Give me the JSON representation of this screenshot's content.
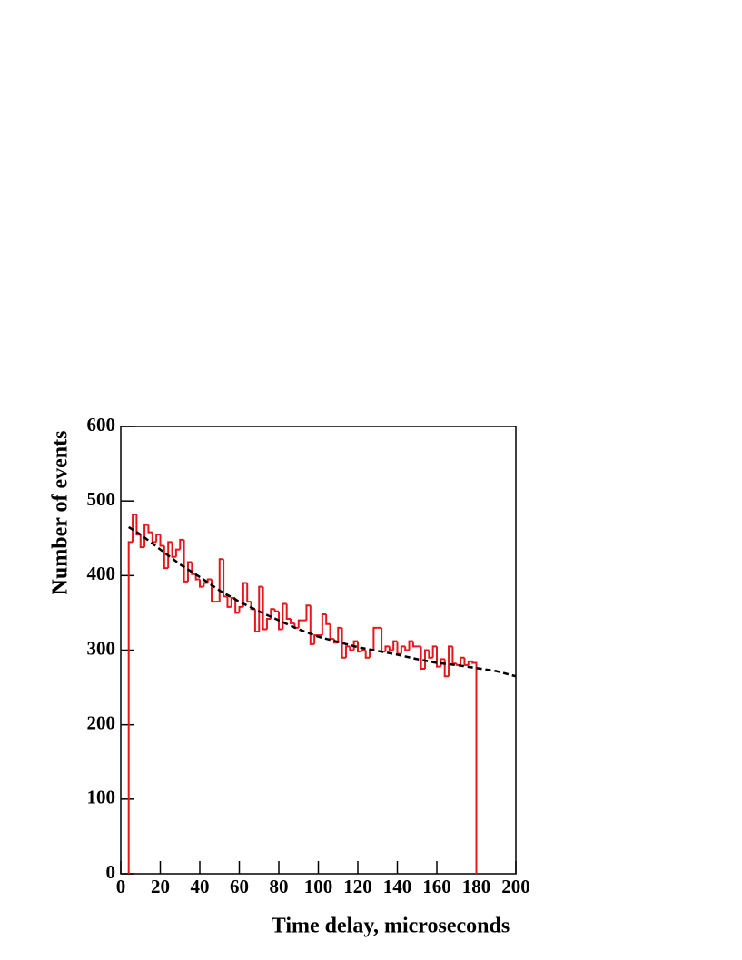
{
  "chart_data": {
    "type": "histogram",
    "x_label": "Time delay, microseconds",
    "y_label": "Number of events",
    "xlim": [
      0,
      200
    ],
    "xticks": [
      0,
      20,
      40,
      60,
      80,
      100,
      120,
      140,
      160,
      180,
      200
    ],
    "ylim": [
      0,
      600
    ],
    "yticks": [
      0,
      100,
      200,
      300,
      400,
      500,
      600
    ],
    "color": "#e8151b",
    "bins": [
      4,
      6,
      8,
      10,
      12,
      14,
      16,
      18,
      20,
      22,
      24,
      26,
      28,
      30,
      32,
      34,
      36,
      38,
      40,
      42,
      44,
      46,
      48,
      50,
      52,
      54,
      56,
      58,
      60,
      62,
      64,
      66,
      68,
      70,
      72,
      74,
      76,
      78,
      80,
      82,
      84,
      86,
      88,
      90,
      92,
      94,
      96,
      98,
      100,
      102,
      104,
      106,
      108,
      110,
      112,
      114,
      116,
      118,
      120,
      122,
      124,
      126,
      128,
      130,
      132,
      134,
      136,
      138,
      140,
      142,
      144,
      146,
      148,
      150,
      152,
      154,
      156,
      158,
      160,
      162,
      164,
      166,
      168,
      170,
      172,
      174,
      176,
      178,
      180
    ],
    "values": [
      445,
      482,
      455,
      438,
      468,
      458,
      445,
      455,
      440,
      410,
      445,
      425,
      435,
      448,
      392,
      418,
      402,
      395,
      385,
      390,
      395,
      365,
      365,
      422,
      372,
      358,
      370,
      350,
      358,
      390,
      365,
      355,
      325,
      385,
      328,
      342,
      355,
      352,
      328,
      362,
      342,
      336,
      330,
      340,
      340,
      360,
      308,
      320,
      320,
      348,
      335,
      315,
      310,
      330,
      290,
      305,
      300,
      312,
      298,
      300,
      290,
      300,
      330,
      330,
      298,
      305,
      300,
      312,
      295,
      305,
      300,
      312,
      305,
      305,
      275,
      300,
      290,
      305,
      278,
      288,
      265,
      305,
      282,
      280,
      290,
      280,
      285,
      283
    ],
    "fit": {
      "color": "#000000",
      "x": [
        4,
        10,
        20,
        30,
        40,
        50,
        60,
        70,
        80,
        90,
        100,
        110,
        120,
        130,
        140,
        150,
        160,
        170,
        180,
        190,
        200
      ],
      "values": [
        465,
        455,
        435,
        415,
        398,
        380,
        365,
        352,
        340,
        328,
        318,
        311,
        304,
        299,
        294,
        288,
        283,
        280,
        276,
        272,
        265
      ]
    }
  }
}
